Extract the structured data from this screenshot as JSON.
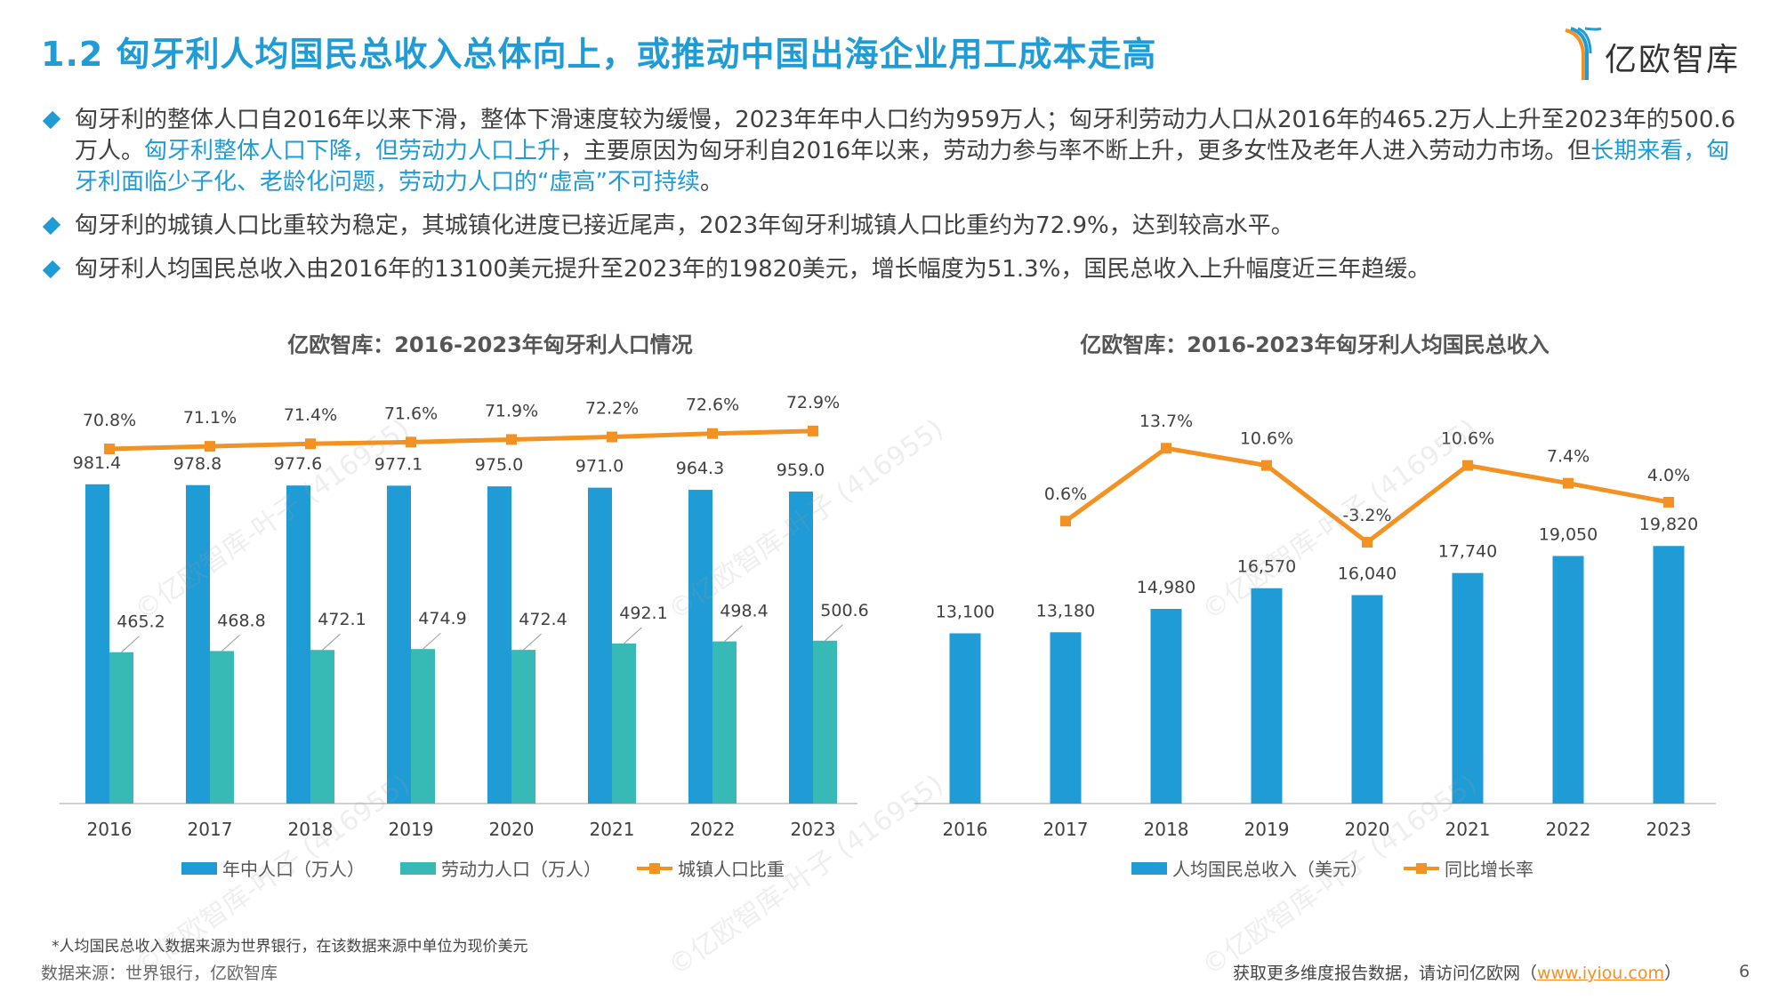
{
  "header": {
    "title": "1.2 匈牙利人均国民总收入总体向上，或推动中国出海企业用工成本走高",
    "logo_text": "亿欧智库"
  },
  "bullets": [
    {
      "parts": [
        {
          "text": "匈牙利的整体人口自2016年以来下滑，整体下滑速度较为缓慢，2023年年中人口约为959万人；匈牙利劳动力人口从2016年的465.2万人上升至2023年的500.6万人。",
          "highlight": false
        },
        {
          "text": "匈牙利整体人口下降，但劳动力人口上升",
          "highlight": true
        },
        {
          "text": "，主要原因为匈牙利自2016年以来，劳动力参与率不断上升，更多女性及老年人进入劳动力市场。但",
          "highlight": false
        },
        {
          "text": "长期来看，匈牙利面临少子化、老龄化问题，劳动力人口的“虚高”不可持续",
          "highlight": true
        },
        {
          "text": "。",
          "highlight": false
        }
      ]
    },
    {
      "parts": [
        {
          "text": "匈牙利的城镇人口比重较为稳定，其城镇化进度已接近尾声，2023年匈牙利城镇人口比重约为72.9%，达到较高水平。",
          "highlight": false
        }
      ]
    },
    {
      "parts": [
        {
          "text": "匈牙利人均国民总收入由2016年的13100美元提升至2023年的19820美元，增长幅度为51.3%，国民总收入上升幅度近三年趋缓。",
          "highlight": false
        }
      ]
    }
  ],
  "colors": {
    "accent": "#1f9bd5",
    "bar_blue": "#1f9bd5",
    "bar_teal": "#37bab5",
    "line_orange": "#f39122"
  },
  "chart_data": [
    {
      "type": "bar",
      "title": "亿欧智库：2016-2023年匈牙利人口情况",
      "categories": [
        "2016",
        "2017",
        "2018",
        "2019",
        "2020",
        "2021",
        "2022",
        "2023"
      ],
      "series": [
        {
          "name": "年中人口（万人）",
          "type": "bar",
          "values": [
            981.4,
            978.8,
            977.6,
            977.1,
            975.0,
            971.0,
            964.3,
            959.0
          ],
          "labels": [
            "981.4",
            "978.8",
            "977.6",
            "977.1",
            "975.0",
            "971.0",
            "964.3",
            "959.0"
          ]
        },
        {
          "name": "劳动力人口（万人）",
          "type": "bar",
          "values": [
            465.2,
            468.8,
            472.1,
            474.9,
            472.4,
            492.1,
            498.4,
            500.6
          ],
          "labels": [
            "465.2",
            "468.8",
            "472.1",
            "474.9",
            "472.4",
            "492.1",
            "498.4",
            "500.6"
          ]
        },
        {
          "name": "城镇人口比重",
          "type": "line",
          "values": [
            70.8,
            71.1,
            71.4,
            71.6,
            71.9,
            72.2,
            72.6,
            72.9
          ],
          "labels": [
            "70.8%",
            "71.1%",
            "71.4%",
            "71.6%",
            "71.9%",
            "72.2%",
            "72.6%",
            "72.9%"
          ]
        }
      ],
      "legend": "bottom",
      "grid": false
    },
    {
      "type": "bar",
      "title": "亿欧智库：2016-2023年匈牙利人均国民总收入",
      "categories": [
        "2016",
        "2017",
        "2018",
        "2019",
        "2020",
        "2021",
        "2022",
        "2023"
      ],
      "series": [
        {
          "name": "人均国民总收入（美元）",
          "type": "bar",
          "values": [
            13100,
            13180,
            14980,
            16570,
            16040,
            17740,
            19050,
            19820
          ],
          "labels": [
            "13,100",
            "13,180",
            "14,980",
            "16,570",
            "16,040",
            "17,740",
            "19,050",
            "19,820"
          ]
        },
        {
          "name": "同比增长率",
          "type": "line",
          "values": [
            null,
            0.6,
            13.7,
            10.6,
            -3.2,
            10.6,
            7.4,
            4.0
          ],
          "labels": [
            "",
            "0.6%",
            "13.7%",
            "10.6%",
            "-3.2%",
            "10.6%",
            "7.4%",
            "4.0%"
          ]
        }
      ],
      "legend": "bottom",
      "grid": false
    }
  ],
  "footer": {
    "note": "*人均国民总收入数据来源为世界银行，在该数据来源中单位为现价美元",
    "source": "数据来源：世界银行，亿欧智库",
    "more_text": "获取更多维度报告数据，请访问亿欧网（",
    "link": "www.iyiou.com",
    "more_close": "）",
    "page_number": "6"
  },
  "watermark": "©亿欧智库-叶子 (416955)"
}
